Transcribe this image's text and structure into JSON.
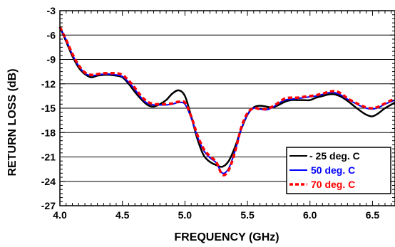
{
  "chart_data": {
    "type": "line",
    "title": "",
    "xlabel": "FREQUENCY (GHz)",
    "ylabel": "RETURN LOSS (dB)",
    "xlim": [
      4.0,
      6.68
    ],
    "ylim": [
      -27,
      -3
    ],
    "x_ticks": [
      4.0,
      4.5,
      5.0,
      5.5,
      6.0,
      6.5
    ],
    "x_tick_labels": [
      "4.0",
      "4.5",
      "5.0",
      "5.5",
      "6.0",
      "6.5"
    ],
    "y_ticks": [
      -3,
      -6,
      -9,
      -12,
      -15,
      -18,
      -21,
      -24,
      -27
    ],
    "y_tick_labels": [
      "-3",
      "-6",
      "-9",
      "-12",
      "-15",
      "-18",
      "-21",
      "-24",
      "-27"
    ],
    "grid": "horizontal",
    "legend_position": "bottom-right",
    "series": [
      {
        "name": "- 25 deg. C",
        "color": "#000000",
        "dash": "solid",
        "points": [
          [
            4.0,
            -5.0
          ],
          [
            4.05,
            -6.8
          ],
          [
            4.1,
            -8.6
          ],
          [
            4.15,
            -10.0
          ],
          [
            4.2,
            -10.8
          ],
          [
            4.25,
            -11.2
          ],
          [
            4.3,
            -11.0
          ],
          [
            4.35,
            -10.9
          ],
          [
            4.4,
            -10.9
          ],
          [
            4.45,
            -11.0
          ],
          [
            4.5,
            -11.2
          ],
          [
            4.55,
            -12.0
          ],
          [
            4.6,
            -13.0
          ],
          [
            4.65,
            -13.9
          ],
          [
            4.7,
            -14.6
          ],
          [
            4.75,
            -14.8
          ],
          [
            4.8,
            -14.5
          ],
          [
            4.85,
            -14.0
          ],
          [
            4.9,
            -13.2
          ],
          [
            4.95,
            -12.8
          ],
          [
            5.0,
            -13.5
          ],
          [
            5.05,
            -16.0
          ],
          [
            5.1,
            -18.8
          ],
          [
            5.15,
            -20.8
          ],
          [
            5.2,
            -21.6
          ],
          [
            5.25,
            -22.0
          ],
          [
            5.3,
            -22.2
          ],
          [
            5.35,
            -21.5
          ],
          [
            5.4,
            -19.8
          ],
          [
            5.45,
            -17.6
          ],
          [
            5.5,
            -15.8
          ],
          [
            5.55,
            -14.9
          ],
          [
            5.6,
            -14.7
          ],
          [
            5.65,
            -14.8
          ],
          [
            5.7,
            -14.9
          ],
          [
            5.75,
            -14.6
          ],
          [
            5.8,
            -14.2
          ],
          [
            5.85,
            -14.0
          ],
          [
            5.9,
            -14.0
          ],
          [
            5.95,
            -14.0
          ],
          [
            6.0,
            -14.0
          ],
          [
            6.05,
            -13.7
          ],
          [
            6.1,
            -13.5
          ],
          [
            6.15,
            -13.3
          ],
          [
            6.2,
            -13.3
          ],
          [
            6.25,
            -13.6
          ],
          [
            6.3,
            -14.1
          ],
          [
            6.35,
            -14.7
          ],
          [
            6.4,
            -15.3
          ],
          [
            6.45,
            -15.8
          ],
          [
            6.5,
            -16.0
          ],
          [
            6.55,
            -15.6
          ],
          [
            6.6,
            -15.0
          ],
          [
            6.68,
            -14.3
          ]
        ]
      },
      {
        "name": "50 deg. C",
        "color": "#0000ff",
        "dash": "solid",
        "points": [
          [
            4.0,
            -5.0
          ],
          [
            4.05,
            -6.6
          ],
          [
            4.1,
            -8.4
          ],
          [
            4.15,
            -9.8
          ],
          [
            4.2,
            -10.7
          ],
          [
            4.25,
            -11.0
          ],
          [
            4.3,
            -10.9
          ],
          [
            4.35,
            -10.8
          ],
          [
            4.4,
            -10.8
          ],
          [
            4.45,
            -10.9
          ],
          [
            4.5,
            -11.1
          ],
          [
            4.55,
            -11.8
          ],
          [
            4.6,
            -12.7
          ],
          [
            4.65,
            -13.7
          ],
          [
            4.7,
            -14.4
          ],
          [
            4.75,
            -14.6
          ],
          [
            4.8,
            -14.6
          ],
          [
            4.85,
            -14.6
          ],
          [
            4.9,
            -14.5
          ],
          [
            4.95,
            -14.3
          ],
          [
            5.0,
            -14.5
          ],
          [
            5.05,
            -16.2
          ],
          [
            5.1,
            -18.5
          ],
          [
            5.15,
            -20.2
          ],
          [
            5.2,
            -21.1
          ],
          [
            5.25,
            -21.7
          ],
          [
            5.3,
            -23.0
          ],
          [
            5.35,
            -22.4
          ],
          [
            5.4,
            -20.3
          ],
          [
            5.45,
            -17.6
          ],
          [
            5.5,
            -15.8
          ],
          [
            5.55,
            -15.0
          ],
          [
            5.6,
            -15.1
          ],
          [
            5.65,
            -15.2
          ],
          [
            5.7,
            -14.9
          ],
          [
            5.75,
            -14.4
          ],
          [
            5.8,
            -14.0
          ],
          [
            5.85,
            -13.9
          ],
          [
            5.9,
            -13.8
          ],
          [
            5.95,
            -13.7
          ],
          [
            6.0,
            -13.6
          ],
          [
            6.05,
            -13.5
          ],
          [
            6.1,
            -13.3
          ],
          [
            6.15,
            -13.1
          ],
          [
            6.2,
            -13.1
          ],
          [
            6.25,
            -13.4
          ],
          [
            6.3,
            -13.9
          ],
          [
            6.35,
            -14.3
          ],
          [
            6.4,
            -14.7
          ],
          [
            6.45,
            -15.0
          ],
          [
            6.5,
            -15.1
          ],
          [
            6.55,
            -14.9
          ],
          [
            6.6,
            -14.5
          ],
          [
            6.68,
            -14.0
          ]
        ]
      },
      {
        "name": "70 deg. C",
        "color": "#ff0000",
        "dash": "dashed",
        "points": [
          [
            4.0,
            -5.0
          ],
          [
            4.05,
            -6.6
          ],
          [
            4.1,
            -8.3
          ],
          [
            4.15,
            -9.7
          ],
          [
            4.2,
            -10.6
          ],
          [
            4.25,
            -10.9
          ],
          [
            4.3,
            -10.8
          ],
          [
            4.35,
            -10.7
          ],
          [
            4.4,
            -10.7
          ],
          [
            4.45,
            -10.7
          ],
          [
            4.5,
            -10.9
          ],
          [
            4.55,
            -11.6
          ],
          [
            4.6,
            -12.5
          ],
          [
            4.65,
            -13.5
          ],
          [
            4.7,
            -14.2
          ],
          [
            4.75,
            -14.5
          ],
          [
            4.8,
            -14.5
          ],
          [
            4.85,
            -14.5
          ],
          [
            4.9,
            -14.4
          ],
          [
            4.95,
            -14.2
          ],
          [
            5.0,
            -14.3
          ],
          [
            5.05,
            -16.0
          ],
          [
            5.1,
            -18.3
          ],
          [
            5.15,
            -20.0
          ],
          [
            5.2,
            -20.9
          ],
          [
            5.25,
            -21.6
          ],
          [
            5.3,
            -23.2
          ],
          [
            5.35,
            -22.6
          ],
          [
            5.4,
            -20.4
          ],
          [
            5.45,
            -17.4
          ],
          [
            5.5,
            -15.6
          ],
          [
            5.55,
            -15.0
          ],
          [
            5.6,
            -15.1
          ],
          [
            5.65,
            -15.1
          ],
          [
            5.7,
            -14.8
          ],
          [
            5.75,
            -14.3
          ],
          [
            5.8,
            -13.8
          ],
          [
            5.85,
            -13.7
          ],
          [
            5.9,
            -13.7
          ],
          [
            5.95,
            -13.6
          ],
          [
            6.0,
            -13.5
          ],
          [
            6.05,
            -13.4
          ],
          [
            6.1,
            -13.2
          ],
          [
            6.15,
            -13.0
          ],
          [
            6.2,
            -12.9
          ],
          [
            6.25,
            -13.2
          ],
          [
            6.3,
            -13.8
          ],
          [
            6.35,
            -14.2
          ],
          [
            6.4,
            -14.6
          ],
          [
            6.45,
            -14.9
          ],
          [
            6.5,
            -15.0
          ],
          [
            6.55,
            -14.8
          ],
          [
            6.6,
            -14.4
          ],
          [
            6.68,
            -13.8
          ]
        ]
      }
    ]
  }
}
